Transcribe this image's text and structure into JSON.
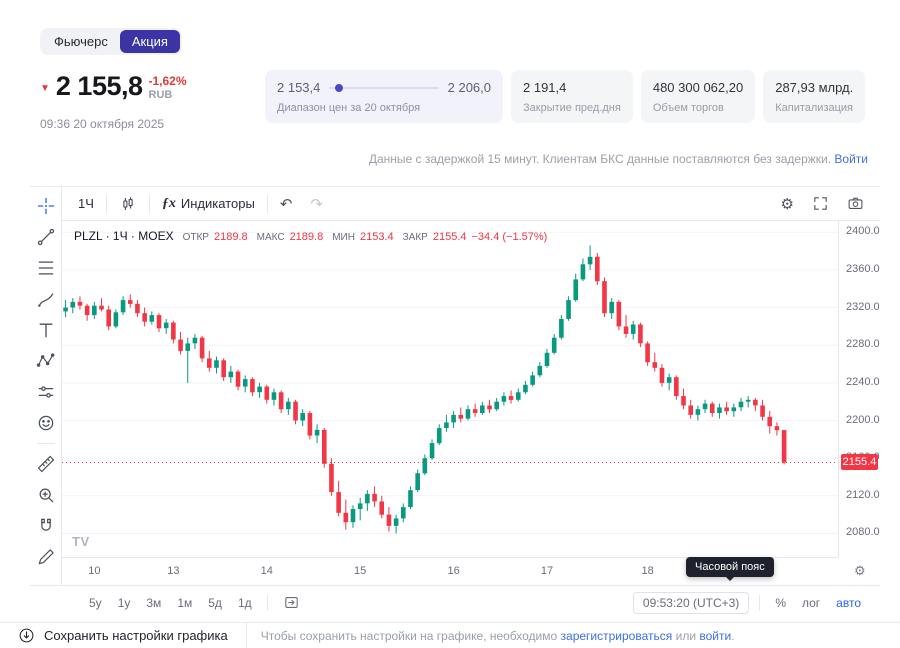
{
  "tabs": {
    "futures": "Фьючерс",
    "stock": "Акция"
  },
  "quote": {
    "price": "2 155,8",
    "change_pct": "-1,62%",
    "currency": "RUB",
    "timestamp": "09:36 20 октября 2025"
  },
  "cards": {
    "range": {
      "min": "2 153,4",
      "max": "2 206,0",
      "label": "Диапазон цен за 20 октября",
      "dot_pos_pct": 5
    },
    "prev_close": {
      "value": "2 191,4",
      "label": "Закрытие пред.дня"
    },
    "volume": {
      "value": "480 300 062,20",
      "label": "Объем торгов"
    },
    "cap": {
      "value": "287,93 млрд.",
      "label": "Капитализация"
    }
  },
  "delay_notice": {
    "text": "Данные с задержкой 15 минут. Клиентам БКС данные поставляются без задержки.",
    "link": "Войти"
  },
  "toolbar": {
    "interval": "1Ч",
    "fx": "ƒx",
    "indicators_label": "Индикаторы",
    "undo": "↶",
    "redo": "↷"
  },
  "legend": {
    "title": "PLZL · 1Ч · MOEX",
    "open_label": "ОТКР",
    "open": "2189.8",
    "high_label": "МАКС",
    "high": "2189.8",
    "low_label": "МИН",
    "low": "2153.4",
    "close_label": "ЗАКР",
    "close": "2155.4",
    "change": "−34.4 (−1.57%)"
  },
  "bottom_toolbar": {
    "ranges": [
      "5у",
      "1у",
      "3м",
      "1м",
      "5д",
      "1д"
    ],
    "clock": "09:53:20 (UTC+3)",
    "percent": "%",
    "log": "лог",
    "auto": "авто"
  },
  "tooltip": {
    "text": "Часовой пояс"
  },
  "footer": {
    "save_label": "Сохранить настройки графика",
    "text": "Чтобы сохранить настройки на графике, необходимо",
    "link_register": "зарегистрироваться",
    "text_or": "или",
    "link_login": "войти",
    "suffix": "."
  },
  "chart_data": {
    "type": "candlestick",
    "symbol": "PLZL",
    "interval": "1Ч",
    "exchange": "MOEX",
    "last_price": 2155.4,
    "up_color": "#089981",
    "down_color": "#f23645",
    "y_ticks": [
      2080,
      2120,
      2160,
      2200,
      2240,
      2280,
      2320,
      2360,
      2400
    ],
    "y_range": [
      2055,
      2412
    ],
    "total_slots": 108,
    "x_ticks": [
      {
        "i": 4,
        "label": "10"
      },
      {
        "i": 15,
        "label": "13"
      },
      {
        "i": 28,
        "label": "14"
      },
      {
        "i": 41,
        "label": "15"
      },
      {
        "i": 54,
        "label": "16"
      },
      {
        "i": 67,
        "label": "17"
      },
      {
        "i": 81,
        "label": "18"
      },
      {
        "i": 97,
        "label": "20"
      }
    ],
    "candles": [
      [
        2316,
        2328,
        2310,
        2320
      ],
      [
        2320,
        2330,
        2314,
        2326
      ],
      [
        2326,
        2332,
        2318,
        2322
      ],
      [
        2322,
        2324,
        2306,
        2312
      ],
      [
        2312,
        2326,
        2308,
        2322
      ],
      [
        2322,
        2330,
        2316,
        2318
      ],
      [
        2318,
        2322,
        2296,
        2300
      ],
      [
        2300,
        2318,
        2298,
        2315
      ],
      [
        2315,
        2332,
        2312,
        2328
      ],
      [
        2328,
        2334,
        2320,
        2324
      ],
      [
        2324,
        2328,
        2310,
        2314
      ],
      [
        2314,
        2320,
        2300,
        2305
      ],
      [
        2305,
        2316,
        2302,
        2312
      ],
      [
        2312,
        2314,
        2294,
        2298
      ],
      [
        2298,
        2308,
        2292,
        2304
      ],
      [
        2304,
        2306,
        2282,
        2286
      ],
      [
        2286,
        2294,
        2270,
        2274
      ],
      [
        2274,
        2288,
        2240,
        2282
      ],
      [
        2282,
        2292,
        2276,
        2288
      ],
      [
        2288,
        2290,
        2262,
        2266
      ],
      [
        2266,
        2274,
        2252,
        2256
      ],
      [
        2256,
        2268,
        2250,
        2264
      ],
      [
        2264,
        2266,
        2242,
        2246
      ],
      [
        2246,
        2258,
        2240,
        2252
      ],
      [
        2252,
        2254,
        2232,
        2236
      ],
      [
        2236,
        2248,
        2230,
        2244
      ],
      [
        2244,
        2246,
        2226,
        2230
      ],
      [
        2230,
        2240,
        2224,
        2236
      ],
      [
        2236,
        2238,
        2218,
        2222
      ],
      [
        2222,
        2234,
        2216,
        2230
      ],
      [
        2230,
        2232,
        2208,
        2212
      ],
      [
        2212,
        2224,
        2206,
        2220
      ],
      [
        2220,
        2222,
        2196,
        2200
      ],
      [
        2200,
        2212,
        2194,
        2208
      ],
      [
        2208,
        2210,
        2180,
        2184
      ],
      [
        2184,
        2196,
        2176,
        2190
      ],
      [
        2190,
        2192,
        2150,
        2154
      ],
      [
        2154,
        2160,
        2120,
        2124
      ],
      [
        2124,
        2136,
        2098,
        2102
      ],
      [
        2102,
        2116,
        2084,
        2092
      ],
      [
        2092,
        2110,
        2086,
        2106
      ],
      [
        2106,
        2118,
        2094,
        2112
      ],
      [
        2112,
        2126,
        2104,
        2122
      ],
      [
        2122,
        2130,
        2108,
        2114
      ],
      [
        2114,
        2120,
        2096,
        2100
      ],
      [
        2100,
        2108,
        2082,
        2088
      ],
      [
        2088,
        2100,
        2080,
        2096
      ],
      [
        2096,
        2112,
        2092,
        2108
      ],
      [
        2108,
        2130,
        2106,
        2126
      ],
      [
        2126,
        2148,
        2124,
        2144
      ],
      [
        2144,
        2164,
        2142,
        2160
      ],
      [
        2160,
        2180,
        2158,
        2176
      ],
      [
        2176,
        2196,
        2174,
        2192
      ],
      [
        2192,
        2206,
        2188,
        2198
      ],
      [
        2198,
        2210,
        2192,
        2206
      ],
      [
        2206,
        2214,
        2198,
        2202
      ],
      [
        2202,
        2216,
        2200,
        2212
      ],
      [
        2212,
        2218,
        2204,
        2208
      ],
      [
        2208,
        2220,
        2206,
        2216
      ],
      [
        2216,
        2222,
        2208,
        2212
      ],
      [
        2212,
        2224,
        2210,
        2220
      ],
      [
        2220,
        2230,
        2216,
        2226
      ],
      [
        2226,
        2232,
        2218,
        2222
      ],
      [
        2222,
        2234,
        2220,
        2230
      ],
      [
        2230,
        2242,
        2228,
        2238
      ],
      [
        2238,
        2252,
        2236,
        2248
      ],
      [
        2248,
        2262,
        2246,
        2258
      ],
      [
        2258,
        2276,
        2256,
        2272
      ],
      [
        2272,
        2292,
        2270,
        2288
      ],
      [
        2288,
        2312,
        2286,
        2308
      ],
      [
        2308,
        2332,
        2306,
        2328
      ],
      [
        2328,
        2356,
        2326,
        2350
      ],
      [
        2350,
        2372,
        2348,
        2366
      ],
      [
        2366,
        2386,
        2360,
        2374
      ],
      [
        2374,
        2378,
        2344,
        2348
      ],
      [
        2348,
        2352,
        2310,
        2314
      ],
      [
        2314,
        2330,
        2308,
        2326
      ],
      [
        2326,
        2328,
        2296,
        2300
      ],
      [
        2300,
        2312,
        2288,
        2292
      ],
      [
        2292,
        2306,
        2286,
        2302
      ],
      [
        2302,
        2304,
        2278,
        2282
      ],
      [
        2282,
        2284,
        2258,
        2262
      ],
      [
        2262,
        2272,
        2252,
        2256
      ],
      [
        2256,
        2260,
        2236,
        2240
      ],
      [
        2240,
        2250,
        2232,
        2246
      ],
      [
        2246,
        2248,
        2222,
        2226
      ],
      [
        2226,
        2234,
        2212,
        2216
      ],
      [
        2216,
        2222,
        2202,
        2206
      ],
      [
        2206,
        2216,
        2200,
        2212
      ],
      [
        2212,
        2222,
        2208,
        2218
      ],
      [
        2218,
        2220,
        2204,
        2208
      ],
      [
        2208,
        2218,
        2202,
        2214
      ],
      [
        2214,
        2220,
        2206,
        2210
      ],
      [
        2210,
        2218,
        2204,
        2214
      ],
      [
        2214,
        2224,
        2210,
        2220
      ],
      [
        2220,
        2226,
        2214,
        2222
      ],
      [
        2222,
        2224,
        2210,
        2216
      ],
      [
        2216,
        2222,
        2200,
        2204
      ],
      [
        2204,
        2210,
        2186,
        2194
      ],
      [
        2194,
        2198,
        2184,
        2189.8
      ],
      [
        2189.8,
        2189.8,
        2153.4,
        2155.4
      ]
    ]
  }
}
